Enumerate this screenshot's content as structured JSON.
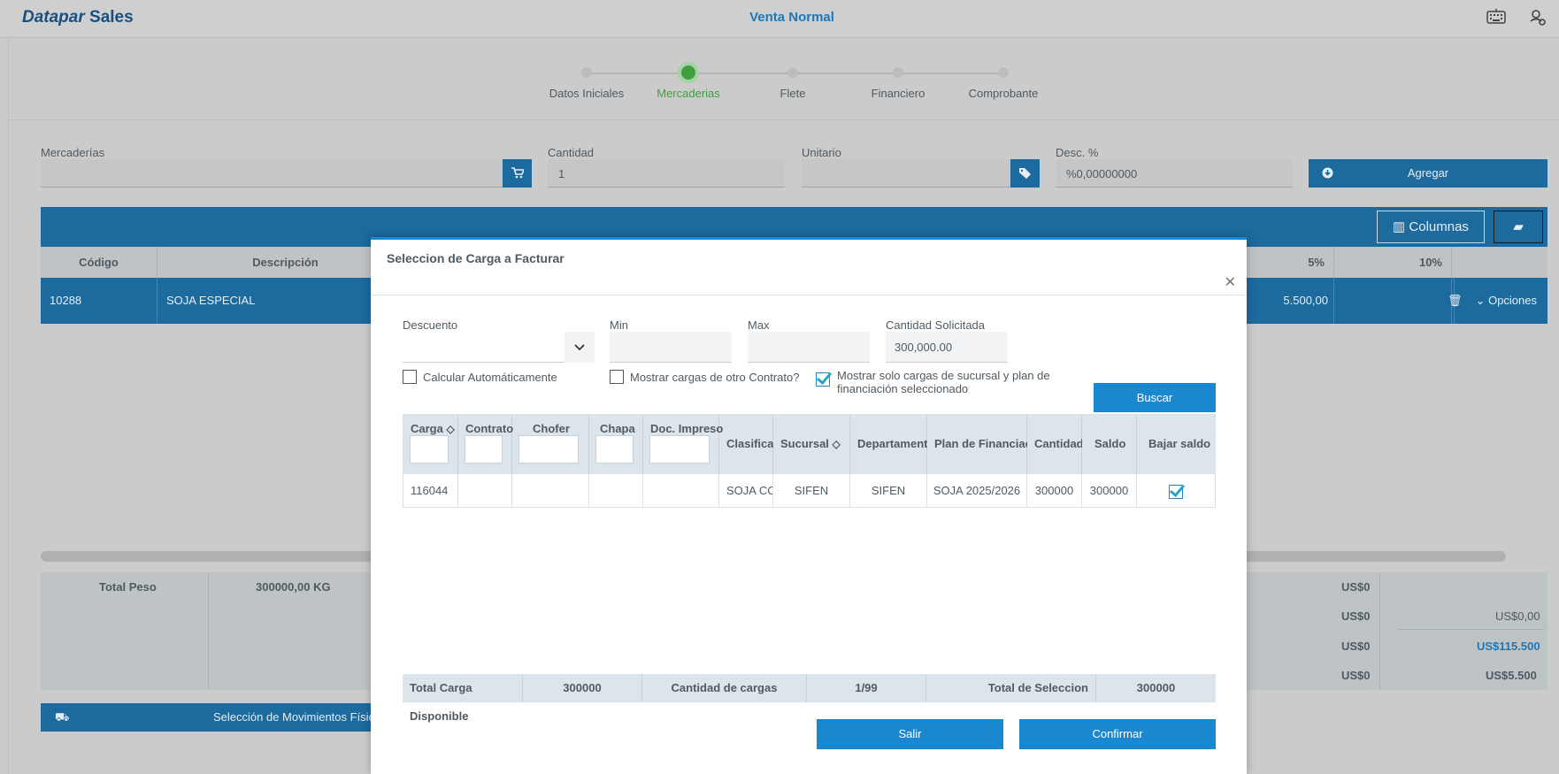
{
  "header": {
    "brand_italic": "Datapar",
    "brand_bold": "Sales",
    "title": "Venta Normal"
  },
  "stepper": {
    "steps": [
      "Datos Iniciales",
      "Mercaderias",
      "Flete",
      "Financiero",
      "Comprobante"
    ],
    "active": "Mercaderias"
  },
  "form": {
    "mercaderias_label": "Mercaderías",
    "mercaderias_value": "",
    "cantidad_label": "Cantidad",
    "cantidad_value": "1",
    "unitario_label": "Unitario",
    "unitario_value": "",
    "desc_label": "Desc. %",
    "desc_value": "%0,00000000",
    "agregar_label": "Agregar"
  },
  "grid": {
    "columnas_label": "Columnas",
    "headers": {
      "codigo": "Código",
      "descripcion": "Descripción",
      "pct5": "5%",
      "pct10": "10%"
    },
    "row": {
      "codigo": "10288",
      "descripcion": "SOJA ESPECIAL",
      "pct5": "5.500,00",
      "pct10": "",
      "opciones": "Opciones"
    }
  },
  "totals": {
    "peso_label": "Total Peso",
    "peso_value": "300000,00 KG",
    "col_a": [
      "US$0",
      "US$0",
      "US$0",
      "US$0"
    ],
    "col_b": [
      "US$0,00",
      "US$115.500",
      "US$5.500"
    ]
  },
  "movimientos_label": "Selección de Movimientos Físicos",
  "modal": {
    "title": "Seleccion de Carga a Facturar",
    "descuento_label": "Descuento",
    "min_label": "Min",
    "max_label": "Max",
    "cantidad_solicitada_label": "Cantidad Solicitada",
    "cantidad_solicitada_value": "300,000.00",
    "calcular_auto_label": "Calcular Automáticamente",
    "calcular_auto_checked": false,
    "mostrar_otro_label": "Mostrar cargas de otro Contrato?",
    "mostrar_otro_checked": false,
    "mostrar_solo_label_1": "Mostrar solo cargas de sucursal y plan de",
    "mostrar_solo_label_2": "financiación seleccionado",
    "mostrar_solo_checked": true,
    "buscar_label": "Buscar",
    "table": {
      "headers": {
        "carga": "Carga",
        "contrato": "Contrato",
        "chofer": "Chofer",
        "chapa": "Chapa",
        "doc_impreso": "Doc. Impreso",
        "clasificacion": "Clasificación",
        "sucursal": "Sucursal",
        "departamento": "Departamento",
        "plan": "Plan de Financiación",
        "cantidad": "Cantidad",
        "saldo": "Saldo",
        "bajar_saldo": "Bajar saldo"
      },
      "rows": [
        {
          "carga": "116044",
          "contrato": "",
          "chofer": "",
          "chapa": "",
          "doc_impreso": "",
          "clasificacion": "SOJA COMERCIAL",
          "sucursal": "SIFEN",
          "departamento": "SIFEN",
          "plan": "SOJA 2025/2026",
          "cantidad": "300000",
          "saldo": "300000",
          "bajar_saldo": true
        }
      ]
    },
    "footer": {
      "total_disponible_label": "Total Carga Disponible",
      "total_disponible_value": "300000",
      "cantidad_cargas_label": "Cantidad de cargas",
      "cantidad_cargas_value": "1/99",
      "total_seleccion_label": "Total de Seleccion",
      "total_seleccion_value": "300000"
    },
    "salir_label": "Salir",
    "confirmar_label": "Confirmar"
  }
}
